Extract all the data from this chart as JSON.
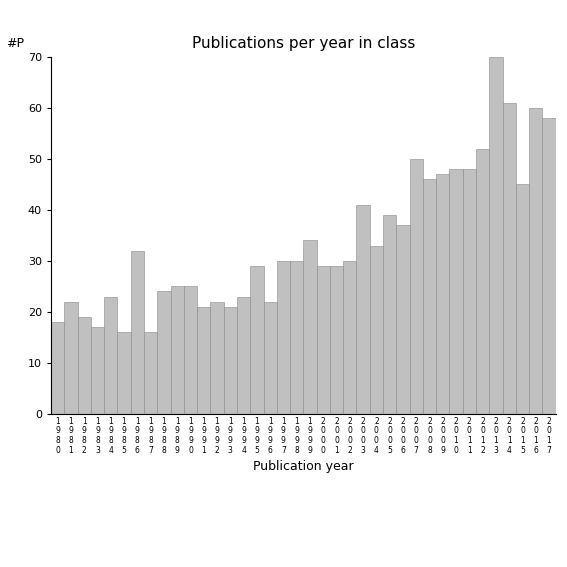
{
  "title": "Publications per year in class",
  "xlabel": "Publication year",
  "ylabel": "#P",
  "bar_color": "#c0c0c0",
  "bar_edge_color": "#888888",
  "background_color": "#ffffff",
  "ylim": [
    0,
    70
  ],
  "yticks": [
    0,
    10,
    20,
    30,
    40,
    50,
    60,
    70
  ],
  "years": [
    "1980",
    "1981",
    "1982",
    "1983",
    "1984",
    "1985",
    "1986",
    "1987",
    "1988",
    "1989",
    "1990",
    "1991",
    "1992",
    "1993",
    "1994",
    "1995",
    "1996",
    "1997",
    "1998",
    "1999",
    "2000",
    "2001",
    "2002",
    "2003",
    "2004",
    "2005",
    "2006",
    "2007",
    "2008",
    "2009",
    "2010",
    "2011",
    "2012",
    "2013",
    "2014",
    "2015",
    "2016",
    "2017"
  ],
  "values": [
    18,
    22,
    19,
    17,
    23,
    16,
    32,
    16,
    24,
    25,
    25,
    21,
    22,
    21,
    23,
    29,
    22,
    30,
    30,
    34,
    29,
    29,
    30,
    41,
    33,
    39,
    37,
    50,
    46,
    47,
    48,
    48,
    52,
    70,
    61,
    45,
    60,
    58
  ],
  "last_bar": 10,
  "title_fontsize": 11,
  "xlabel_fontsize": 9,
  "ylabel_fontsize": 9,
  "ytick_fontsize": 8,
  "xtick_fontsize": 5.5
}
